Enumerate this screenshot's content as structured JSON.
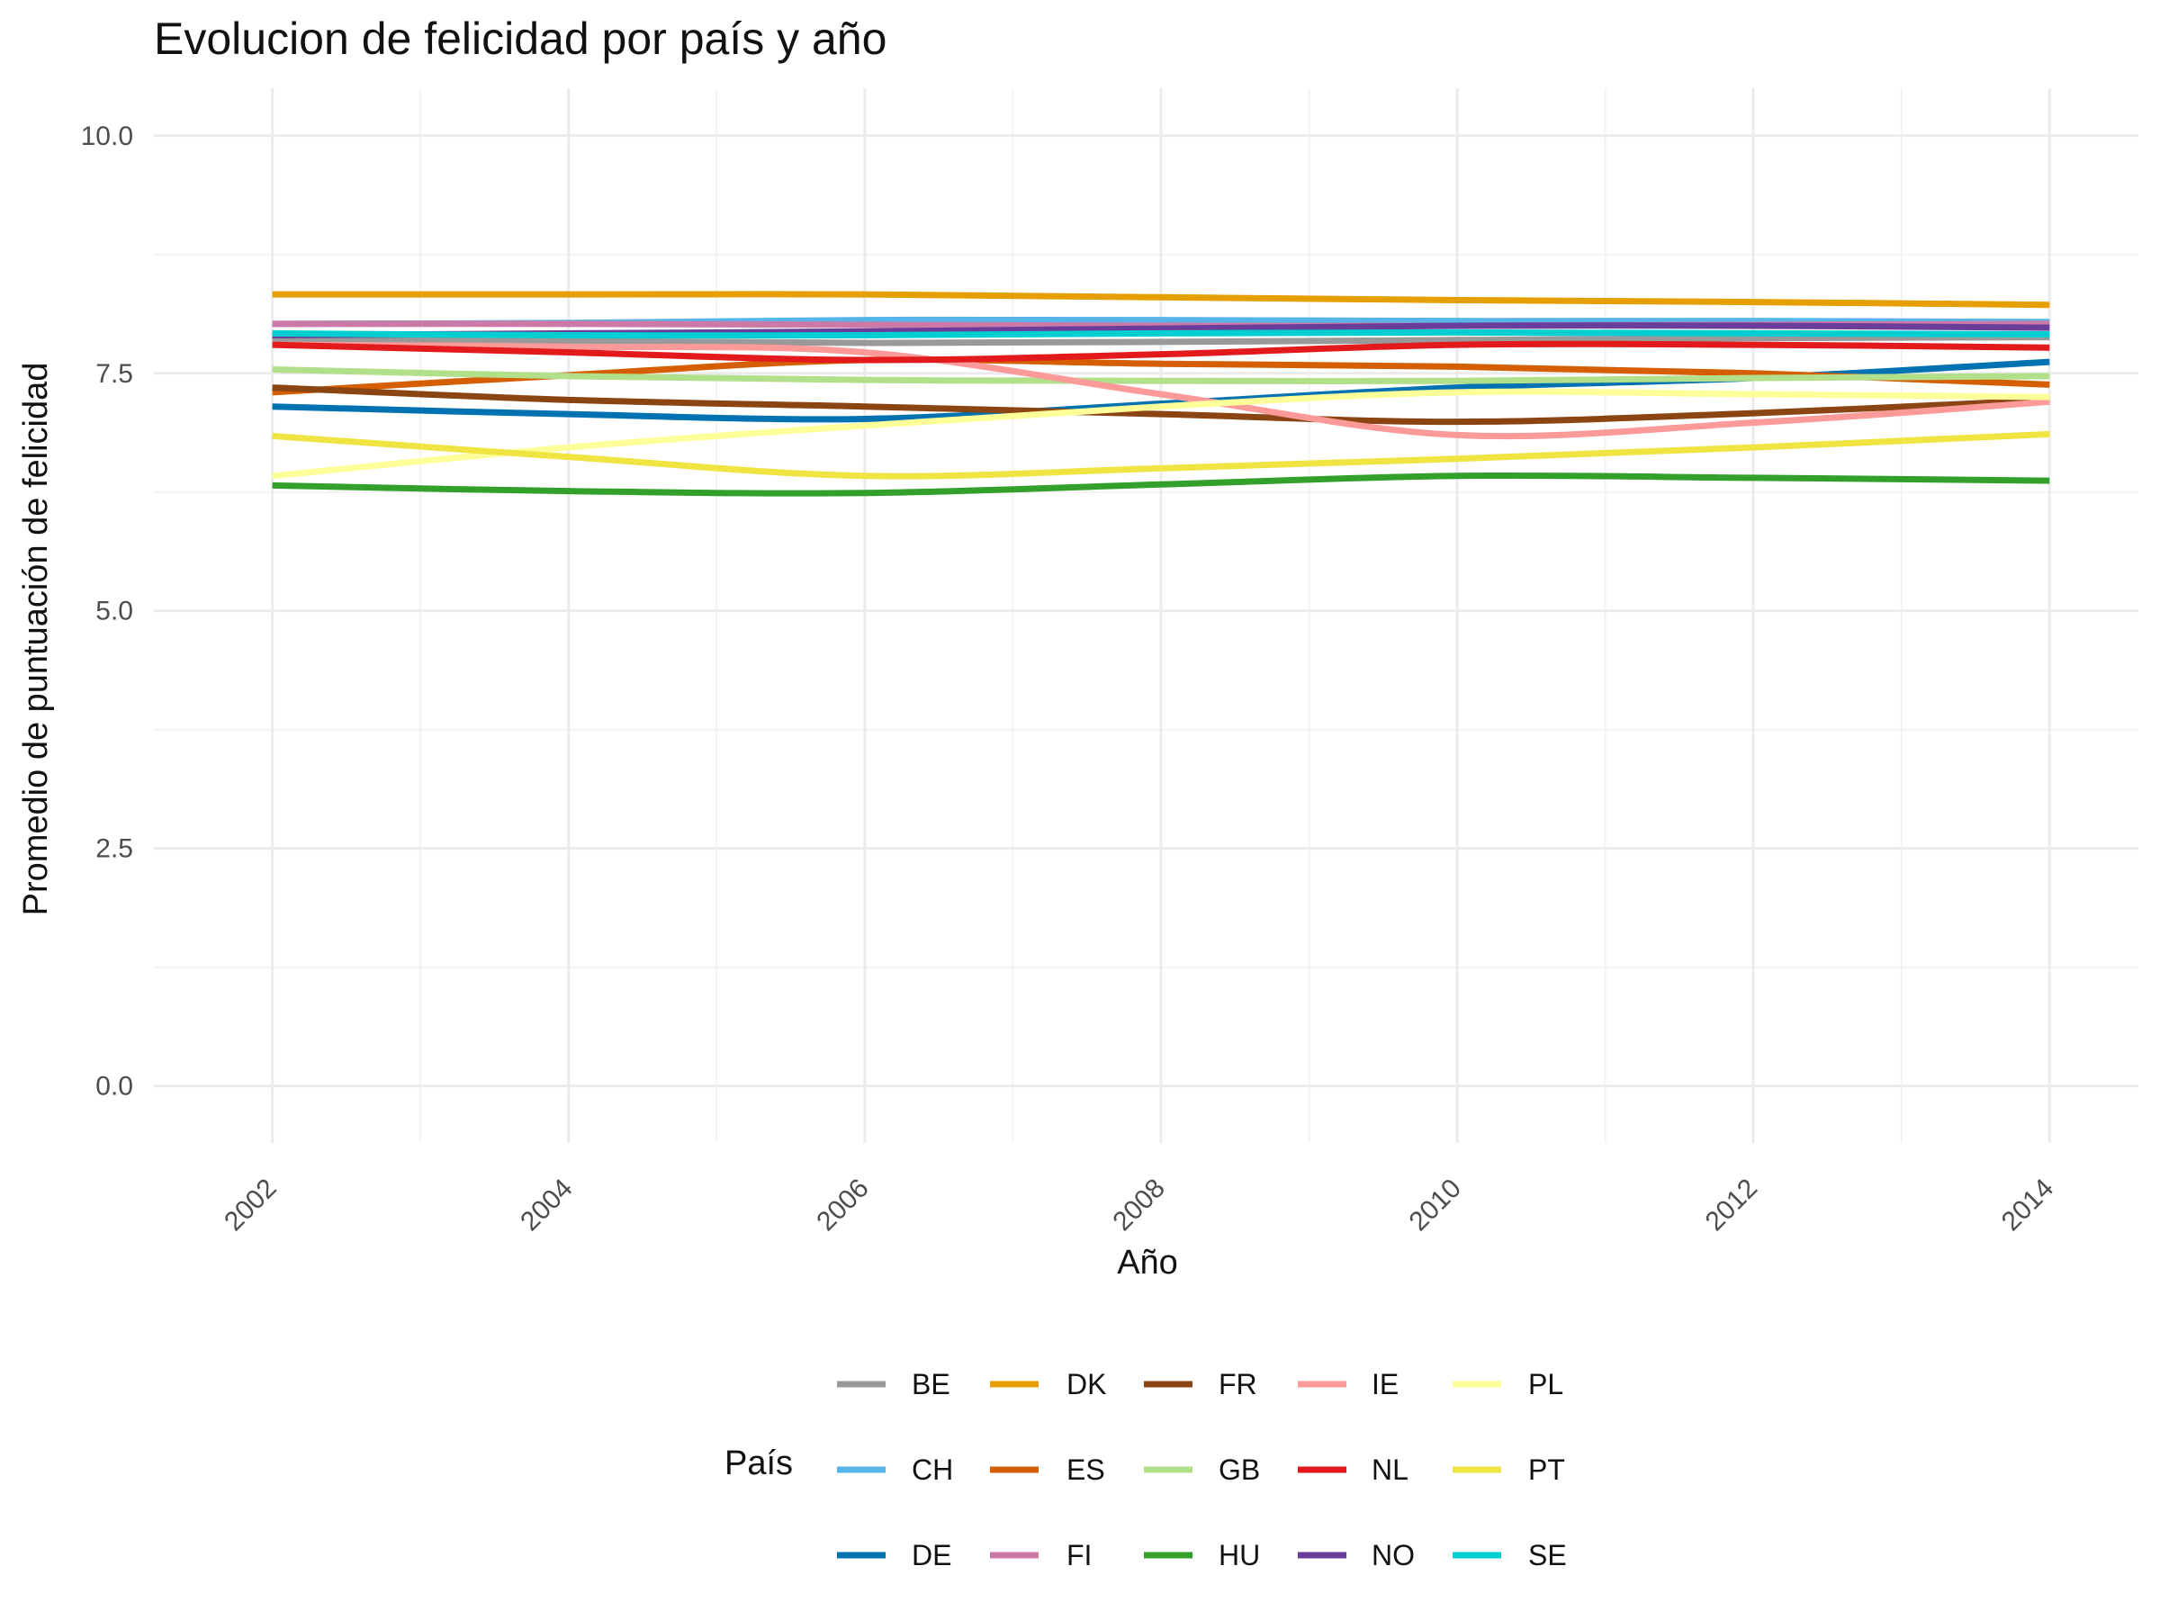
{
  "chart_data": {
    "type": "line",
    "title": "Evolucion de felicidad por país y año",
    "xlabel": "Año",
    "ylabel": "Promedio de puntuación de felicidad",
    "xlim": [
      2001.2,
      2014.6
    ],
    "ylim": [
      -0.6,
      10.5
    ],
    "x_ticks": [
      2002,
      2004,
      2006,
      2008,
      2010,
      2012,
      2014
    ],
    "x_tick_labels": [
      "2002",
      "2004",
      "2006",
      "2008",
      "2010",
      "2012",
      "2014"
    ],
    "y_ticks": [
      0,
      2.5,
      5,
      7.5,
      10
    ],
    "y_tick_labels": [
      "0.0",
      "2.5",
      "5.0",
      "7.5",
      "10.0"
    ],
    "grid": true,
    "legend": {
      "title": "País",
      "position": "bottom",
      "columns": 5
    },
    "x": [
      2002,
      2004,
      2006,
      2008,
      2010,
      2012,
      2014
    ],
    "series": [
      {
        "name": "BE",
        "color": "#999999",
        "values": [
          7.85,
          7.84,
          7.82,
          7.83,
          7.85,
          7.87,
          7.88
        ]
      },
      {
        "name": "CH",
        "color": "#56B4E9",
        "values": [
          8.02,
          8.03,
          8.06,
          8.06,
          8.05,
          8.05,
          8.04
        ]
      },
      {
        "name": "DE",
        "color": "#0072B2",
        "values": [
          7.15,
          7.07,
          7.02,
          7.18,
          7.35,
          7.45,
          7.62
        ]
      },
      {
        "name": "DK",
        "color": "#E69F00",
        "values": [
          8.33,
          8.33,
          8.33,
          8.3,
          8.27,
          8.25,
          8.22
        ]
      },
      {
        "name": "ES",
        "color": "#D55E00",
        "values": [
          7.3,
          7.48,
          7.64,
          7.6,
          7.57,
          7.5,
          7.38
        ]
      },
      {
        "name": "FI",
        "color": "#CC79A7",
        "values": [
          8.02,
          8.02,
          8.01,
          8.0,
          8.0,
          8.01,
          8.02
        ]
      },
      {
        "name": "FR",
        "color": "#8B4513",
        "values": [
          7.35,
          7.22,
          7.15,
          7.07,
          6.99,
          7.08,
          7.22
        ]
      },
      {
        "name": "GB",
        "color": "#B2DF8A",
        "values": [
          7.54,
          7.47,
          7.43,
          7.42,
          7.42,
          7.45,
          7.47
        ]
      },
      {
        "name": "HU",
        "color": "#33A02C",
        "values": [
          6.32,
          6.26,
          6.24,
          6.33,
          6.42,
          6.4,
          6.37
        ]
      },
      {
        "name": "IE",
        "color": "#FB9A99",
        "values": [
          7.8,
          7.78,
          7.72,
          7.28,
          6.85,
          6.98,
          7.2
        ]
      },
      {
        "name": "NL",
        "color": "#E31A1C",
        "values": [
          7.8,
          7.72,
          7.64,
          7.7,
          7.8,
          7.8,
          7.77
        ]
      },
      {
        "name": "NO",
        "color": "#6A3D9A",
        "values": [
          7.9,
          7.92,
          7.94,
          7.97,
          8.0,
          8.0,
          7.98
        ]
      },
      {
        "name": "PL",
        "color": "#FFFF99",
        "values": [
          6.42,
          6.72,
          6.95,
          7.15,
          7.3,
          7.28,
          7.25
        ]
      },
      {
        "name": "PT",
        "color": "#F0E442",
        "values": [
          6.84,
          6.62,
          6.42,
          6.5,
          6.6,
          6.72,
          6.86
        ]
      },
      {
        "name": "SE",
        "color": "#00CED1",
        "values": [
          7.92,
          7.9,
          7.9,
          7.92,
          7.93,
          7.92,
          7.91
        ]
      }
    ]
  }
}
